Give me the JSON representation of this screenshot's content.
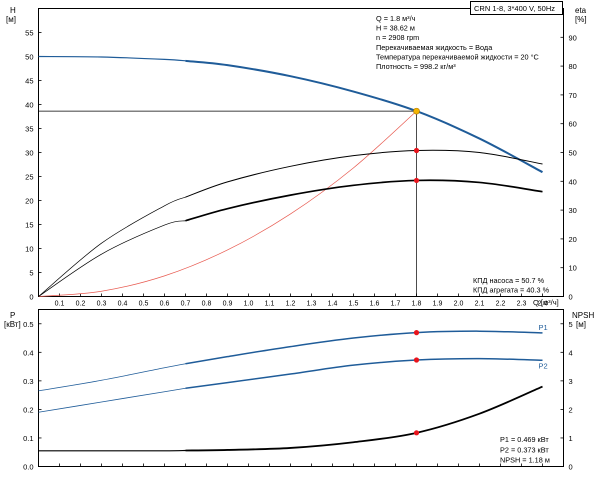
{
  "chart_data": [
    {
      "type": "line",
      "title": "CRN 1-8, 3*400 V, 50Hz",
      "ylabel_left": "H",
      "ylabel_left_unit": "[м]",
      "ylabel_right": "eta",
      "ylabel_right_unit": "[%]",
      "xlabel": "Q [м³/ч]",
      "xlim": [
        0,
        2.5
      ],
      "ylim_left": [
        0,
        60
      ],
      "ylim_right": [
        0,
        100
      ],
      "x_ticks": [
        "0.1",
        "0.2",
        "0.3",
        "0.4",
        "0.5",
        "0.6",
        "0.7",
        "0.8",
        "0.9",
        "1.0",
        "1.1",
        "1.2",
        "1.3",
        "1.4",
        "1.5",
        "1.6",
        "1.7",
        "1.8",
        "1.9",
        "2.0",
        "2.1",
        "2.2",
        "2.3",
        "2.4"
      ],
      "y_ticks_left": [
        "0",
        "5",
        "10",
        "15",
        "20",
        "25",
        "30",
        "35",
        "40",
        "45",
        "50",
        "55"
      ],
      "y_ticks_right": [
        "0",
        "10",
        "20",
        "30",
        "40",
        "50",
        "60",
        "70",
        "80",
        "90"
      ],
      "info_lines": [
        "Q = 1.8 м³/ч",
        "H = 38.62 м",
        "n = 2908 rpm",
        "Перекачиваемая жидкость = Вода",
        "Температура перекачиваемой жидкости = 20 °C",
        "Плотность = 998.2 кг/м³"
      ],
      "efficiency_labels": [
        "КПД насоса = 50.7 %",
        "КПД агрегата = 40.3 %"
      ],
      "grid": false,
      "series": [
        {
          "color": "#1f5c99",
          "axis": "left",
          "x": [
            0,
            0.3,
            0.6,
            0.7,
            0.9,
            1.2,
            1.5,
            1.8,
            2.1,
            2.4
          ],
          "y": [
            50,
            49.9,
            49.4,
            49.1,
            48.2,
            45.9,
            42.7,
            38.62,
            32.9,
            25.9
          ]
        },
        {
          "color": "#e85a50",
          "axis": "left",
          "x": [
            0,
            0.3,
            0.6,
            0.9,
            1.2,
            1.5,
            1.8
          ],
          "y": [
            0,
            1.1,
            4.3,
            9.7,
            17.2,
            26.8,
            38.62
          ]
        },
        {
          "color": "#000000",
          "axis": "right",
          "x": [
            0,
            0.3,
            0.6,
            0.7,
            0.9,
            1.2,
            1.5,
            1.8,
            2.1,
            2.4
          ],
          "y": [
            0,
            18.5,
            31.5,
            34.5,
            39.8,
            45.2,
            48.9,
            50.7,
            50.0,
            46.0
          ]
        },
        {
          "color": "#000000",
          "axis": "right",
          "x": [
            0,
            0.3,
            0.6,
            0.7,
            0.9,
            1.2,
            1.5,
            1.8,
            2.1,
            2.4
          ],
          "y": [
            0,
            14.7,
            24.8,
            26.3,
            30.5,
            35.2,
            38.6,
            40.3,
            39.6,
            36.4
          ]
        }
      ],
      "duty_points": [
        {
          "x": 1.8,
          "y": 38.62,
          "axis": "left",
          "color": "#f5b400"
        },
        {
          "x": 1.8,
          "y": 50.7,
          "axis": "right",
          "color": "#e8141c"
        },
        {
          "x": 1.8,
          "y": 40.3,
          "axis": "right",
          "color": "#e8141c"
        }
      ]
    },
    {
      "type": "line",
      "ylabel_left": "P",
      "ylabel_left_unit": "[кВт]",
      "ylabel_right": "NPSH",
      "ylabel_right_unit": "[м]",
      "xlim": [
        0,
        2.5
      ],
      "ylim_left": [
        0,
        0.55
      ],
      "ylim_right": [
        0,
        5.5
      ],
      "y_ticks_left": [
        "0.0",
        "0.1",
        "0.2",
        "0.3",
        "0.4",
        "0.5"
      ],
      "y_ticks_right": [
        "0",
        "1",
        "2",
        "3",
        "4",
        "5"
      ],
      "info_lines": [
        "P1 = 0.469 кВт",
        "P2 = 0.373 кВт",
        "NPSH = 1.18 м"
      ],
      "grid": false,
      "series": [
        {
          "name": "P1",
          "color": "#1f5c99",
          "axis": "left",
          "x": [
            0,
            0.3,
            0.6,
            0.7,
            0.9,
            1.2,
            1.5,
            1.8,
            2.1,
            2.4
          ],
          "y": [
            0.265,
            0.302,
            0.346,
            0.36,
            0.385,
            0.42,
            0.45,
            0.469,
            0.474,
            0.468
          ]
        },
        {
          "name": "P2",
          "color": "#1f5c99",
          "axis": "left",
          "x": [
            0,
            0.3,
            0.6,
            0.7,
            0.9,
            1.2,
            1.5,
            1.8,
            2.1,
            2.4
          ],
          "y": [
            0.19,
            0.226,
            0.262,
            0.274,
            0.294,
            0.324,
            0.355,
            0.373,
            0.378,
            0.372
          ]
        },
        {
          "color": "#000000",
          "axis": "right",
          "x": [
            0,
            0.3,
            0.6,
            0.7,
            0.9,
            1.2,
            1.5,
            1.8,
            2.1,
            2.4
          ],
          "y": [
            0.55,
            0.55,
            0.55,
            0.56,
            0.58,
            0.65,
            0.85,
            1.18,
            1.85,
            2.8
          ]
        }
      ],
      "duty_points": [
        {
          "x": 1.8,
          "y": 0.469,
          "axis": "left",
          "color": "#e8141c"
        },
        {
          "x": 1.8,
          "y": 0.373,
          "axis": "left",
          "color": "#e8141c"
        },
        {
          "x": 1.8,
          "y": 1.18,
          "axis": "right",
          "color": "#e8141c"
        }
      ]
    }
  ]
}
